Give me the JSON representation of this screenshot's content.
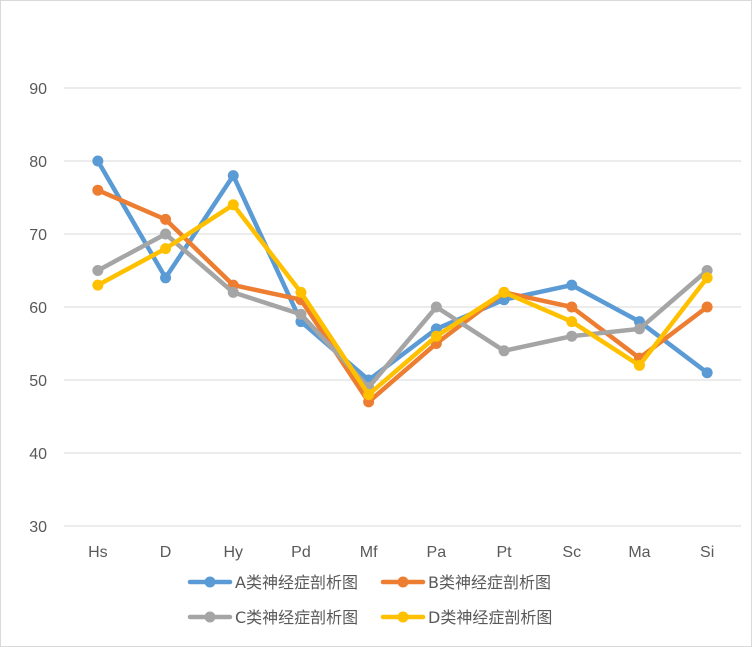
{
  "chart_data": {
    "type": "line",
    "categories": [
      "Hs",
      "D",
      "Hy",
      "Pd",
      "Mf",
      "Pa",
      "Pt",
      "Sc",
      "Ma",
      "Si"
    ],
    "series": [
      {
        "name": "A类神经症剖析图",
        "color": "#5b9bd5",
        "values": [
          80,
          64,
          78,
          58,
          50,
          57,
          61,
          63,
          58,
          51
        ]
      },
      {
        "name": "B类神经症剖析图",
        "color": "#ed7d31",
        "values": [
          76,
          72,
          63,
          61,
          47,
          55,
          62,
          60,
          53,
          60
        ]
      },
      {
        "name": "C类神经症剖析图",
        "color": "#a5a5a5",
        "values": [
          65,
          70,
          62,
          59,
          49,
          60,
          54,
          56,
          57,
          65
        ]
      },
      {
        "name": "D类神经症剖析图",
        "color": "#ffc000",
        "values": [
          63,
          68,
          74,
          62,
          48,
          56,
          62,
          58,
          52,
          64
        ]
      }
    ],
    "ylim": [
      30,
      90
    ],
    "yticks": [
      30,
      40,
      50,
      60,
      70,
      80,
      90
    ],
    "grid": true,
    "legend_position": "bottom",
    "title": "",
    "xlabel": "",
    "ylabel": ""
  }
}
